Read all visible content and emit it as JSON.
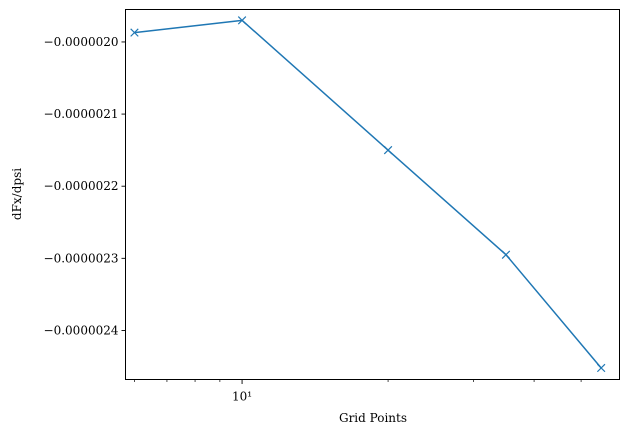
{
  "chart_data": {
    "type": "line",
    "xscale": "log",
    "xlabel": "Grid Points",
    "ylabel": "dFx/dpsi",
    "xlim": [
      5.75,
      60
    ],
    "ylim": [
      -2.468e-06,
      -1.955e-06
    ],
    "grid": false,
    "x_major_ticks": [
      {
        "value": 10,
        "label": "10¹"
      }
    ],
    "x_minor_ticks": [
      6,
      7,
      8,
      9,
      20,
      30,
      40,
      50
    ],
    "y_ticks": [
      {
        "value": -2e-06,
        "label": "−0.0000020"
      },
      {
        "value": -2.1e-06,
        "label": "−0.0000021"
      },
      {
        "value": -2.2e-06,
        "label": "−0.0000022"
      },
      {
        "value": -2.3e-06,
        "label": "−0.0000023"
      },
      {
        "value": -2.4e-06,
        "label": "−0.0000024"
      }
    ],
    "series": [
      {
        "color": "#1f77b4",
        "marker": "x",
        "x": [
          6,
          10,
          20,
          35,
          55
        ],
        "y": [
          -1.987e-06,
          -1.97e-06,
          -2.15e-06,
          -2.295e-06,
          -2.452e-06
        ]
      }
    ]
  }
}
